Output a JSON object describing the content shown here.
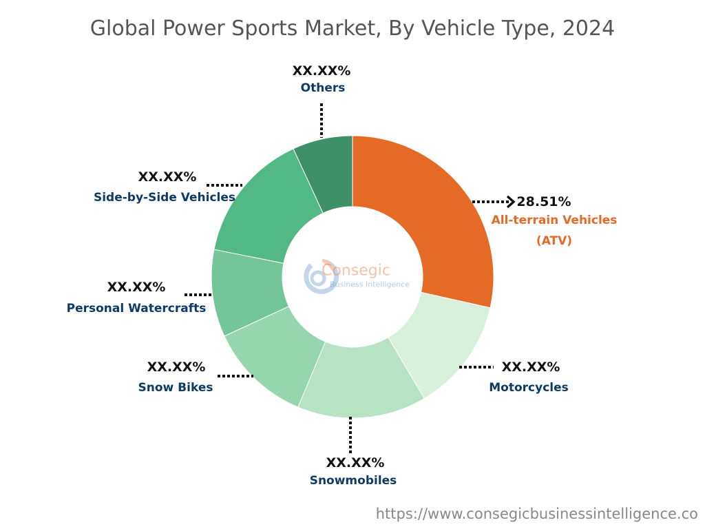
{
  "chart_data": {
    "type": "pie",
    "variant": "donut",
    "title": "Global Power Sports Market, By Vehicle Type, 2024",
    "categories": [
      "All-terrain Vehicles (ATV)",
      "Motorcycles",
      "Snowmobiles",
      "Snow Bikes",
      "Personal Watercrafts",
      "Side-by-Side Vehicles",
      "Others"
    ],
    "values": [
      28.51,
      13.0,
      14.8,
      11.8,
      10.0,
      15.0,
      6.89
    ],
    "value_labels": [
      "28.51%",
      "XX.XX%",
      "XX.XX%",
      "XX.XX%",
      "XX.XX%",
      "XX.XX%",
      "XX.XX%"
    ],
    "colors": [
      "#e56a26",
      "#d8f0dc",
      "#b5e3c4",
      "#96d6af",
      "#74c69a",
      "#52b886",
      "#3e9068"
    ],
    "legend": "none"
  },
  "labels": {
    "atv_line1": "All-terrain Vehicles",
    "atv_line2": "(ATV)"
  },
  "logo": {
    "name": "Consegic",
    "tagline": "Business Intelligence"
  },
  "url": "https://www.consegicbusinessintelligence.co"
}
